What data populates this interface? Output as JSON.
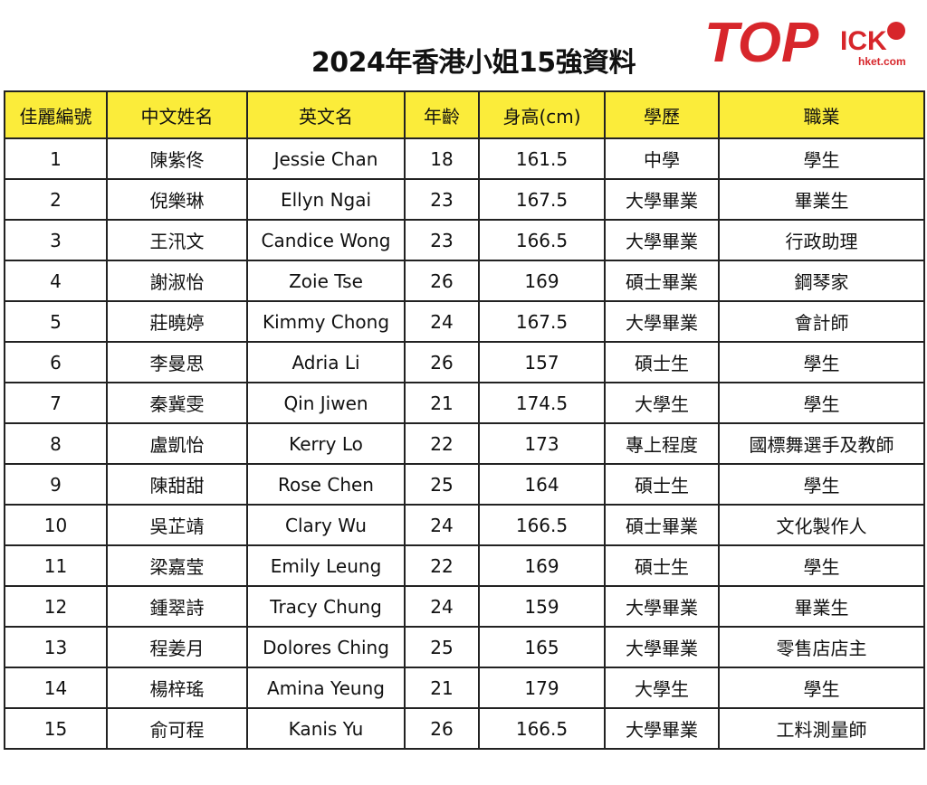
{
  "title": "2024年香港小姐15強資料",
  "logo": {
    "text": "TOPick",
    "sub": "hket.com",
    "color": "#d7262b"
  },
  "header_color": "#fbec3a",
  "columns": [
    "佳麗編號",
    "中文姓名",
    "英文名",
    "年齡",
    "身高(cm)",
    "學歷",
    "職業"
  ],
  "rows": [
    [
      "1",
      "陳紫佟",
      "Jessie Chan",
      "18",
      "161.5",
      "中學",
      "學生"
    ],
    [
      "2",
      "倪樂琳",
      "Ellyn Ngai",
      "23",
      "167.5",
      "大學畢業",
      "畢業生"
    ],
    [
      "3",
      "王汛文",
      "Candice Wong",
      "23",
      "166.5",
      "大學畢業",
      "行政助理"
    ],
    [
      "4",
      "謝淑怡",
      "Zoie Tse",
      "26",
      "169",
      "碩士畢業",
      "鋼琴家"
    ],
    [
      "5",
      "莊曉婷",
      "Kimmy Chong",
      "24",
      "167.5",
      "大學畢業",
      "會計師"
    ],
    [
      "6",
      "李曼思",
      "Adria Li",
      "26",
      "157",
      "碩士生",
      "學生"
    ],
    [
      "7",
      "秦冀雯",
      "Qin Jiwen",
      "21",
      "174.5",
      "大學生",
      "學生"
    ],
    [
      "8",
      "盧凱怡",
      "Kerry Lo",
      "22",
      "173",
      "專上程度",
      "國標舞選手及教師"
    ],
    [
      "9",
      "陳甜甜",
      "Rose Chen",
      "25",
      "164",
      "碩士生",
      "學生"
    ],
    [
      "10",
      "吳芷靖",
      "Clary Wu",
      "24",
      "166.5",
      "碩士畢業",
      "文化製作人"
    ],
    [
      "11",
      "梁嘉莹",
      "Emily Leung",
      "22",
      "169",
      "碩士生",
      "學生"
    ],
    [
      "12",
      "鍾翠詩",
      "Tracy Chung",
      "24",
      "159",
      "大學畢業",
      "畢業生"
    ],
    [
      "13",
      "程姜月",
      "Dolores Ching",
      "25",
      "165",
      "大學畢業",
      "零售店店主"
    ],
    [
      "14",
      "楊梓瑤",
      "Amina Yeung",
      "21",
      "179",
      "大學生",
      "學生"
    ],
    [
      "15",
      "俞可程",
      "Kanis Yu",
      "26",
      "166.5",
      "大學畢業",
      "工料測量師"
    ]
  ]
}
